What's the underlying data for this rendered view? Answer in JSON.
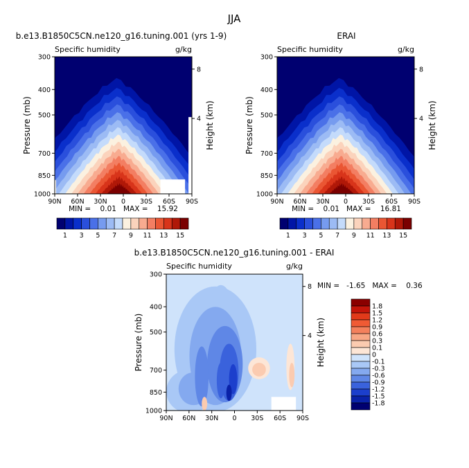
{
  "figure_title": "JJA",
  "panels": {
    "model": {
      "title": "b.e13.B1850C5CN.ne120_g16.tuning.001 (yrs 1-9)",
      "left_label": "Specific humidity",
      "right_label": "g/kg",
      "stats": "MIN =    0.01   MAX =    15.92"
    },
    "obs": {
      "title": "ERAI",
      "left_label": "Specific humidity",
      "right_label": "g/kg",
      "stats": "MIN =    0.01   MAX =    16.81"
    },
    "diff": {
      "title": "b.e13.B1850C5CN.ne120_g16.tuning.001 - ERAI",
      "left_label": "Specific humidity",
      "right_label": "g/kg",
      "stats": "MIN =   -1.65   MAX =    0.36"
    }
  },
  "axes": {
    "ylabel": "Pressure (mb)",
    "ylabel_right": "Height (km)",
    "pressure_ticks": [
      "300",
      "400",
      "500",
      "700",
      "850",
      "1000"
    ],
    "lat_ticks": [
      "90N",
      "60N",
      "30N",
      "0",
      "30S",
      "60S",
      "90S"
    ],
    "height_ticks": [
      "8",
      "4"
    ]
  },
  "colorbar_abs": {
    "labels": [
      "1",
      "3",
      "5",
      "7",
      "9",
      "11",
      "13",
      "15"
    ],
    "colors": [
      "#000070",
      "#0015a6",
      "#0a2fcb",
      "#2a4fdc",
      "#4a70e8",
      "#769bef",
      "#9cbbf4",
      "#c4dbfb",
      "#fbf1e0",
      "#fbd3bc",
      "#f8ab90",
      "#f37e62",
      "#ea5633",
      "#d8341a",
      "#b01808",
      "#7a0000"
    ]
  },
  "colorbar_diff": {
    "labels": [
      "1.8",
      "1.5",
      "1.2",
      "0.9",
      "0.6",
      "0.3",
      "0.1",
      "0",
      "-0.1",
      "-0.3",
      "-0.6",
      "-0.9",
      "-1.2",
      "-1.5",
      "-1.8"
    ],
    "colors": [
      "#8a0000",
      "#c4150a",
      "#e23a1a",
      "#f05a34",
      "#f4805c",
      "#f8a785",
      "#fbcbb0",
      "#fde6d6",
      "#cfe3fb",
      "#a9c8f6",
      "#84a9ef",
      "#5f87e6",
      "#3a62dc",
      "#1c3fcc",
      "#0a22a8",
      "#000070"
    ]
  },
  "chart_data": [
    {
      "type": "contour",
      "title": "b.e13.B1850C5CN.ne120_g16.tuning.001 (yrs 1-9)",
      "subtitle": "Specific humidity",
      "units": "g/kg",
      "xlabel": "",
      "ylabel": "Pressure (mb)",
      "x_ticks": [
        "90N",
        "60N",
        "30N",
        "0",
        "30S",
        "60S",
        "90S"
      ],
      "y_ticks": [
        300,
        400,
        500,
        700,
        850,
        1000
      ],
      "y_scale": "log-pressure",
      "contour_levels": [
        1,
        2,
        3,
        4,
        5,
        6,
        7,
        8,
        9,
        10,
        11,
        12,
        13,
        14,
        15
      ],
      "min": 0.01,
      "max": 15.92
    },
    {
      "type": "contour",
      "title": "ERAI",
      "subtitle": "Specific humidity",
      "units": "g/kg",
      "xlabel": "",
      "ylabel": "Pressure (mb)",
      "x_ticks": [
        "90N",
        "60N",
        "30N",
        "0",
        "30S",
        "60S",
        "90S"
      ],
      "y_ticks": [
        300,
        400,
        500,
        700,
        850,
        1000
      ],
      "y_scale": "log-pressure",
      "contour_levels": [
        1,
        2,
        3,
        4,
        5,
        6,
        7,
        8,
        9,
        10,
        11,
        12,
        13,
        14,
        15
      ],
      "min": 0.01,
      "max": 16.81
    },
    {
      "type": "contour",
      "title": "b.e13.B1850C5CN.ne120_g16.tuning.001 - ERAI",
      "subtitle": "Specific humidity",
      "units": "g/kg",
      "xlabel": "",
      "ylabel": "Pressure (mb)",
      "x_ticks": [
        "90N",
        "60N",
        "30N",
        "0",
        "30S",
        "60S",
        "90S"
      ],
      "y_ticks": [
        300,
        400,
        500,
        700,
        850,
        1000
      ],
      "y_scale": "log-pressure",
      "contour_levels": [
        -1.8,
        -1.5,
        -1.2,
        -0.9,
        -0.6,
        -0.3,
        -0.1,
        0,
        0.1,
        0.3,
        0.6,
        0.9,
        1.2,
        1.5,
        1.8
      ],
      "min": -1.65,
      "max": 0.36
    }
  ]
}
